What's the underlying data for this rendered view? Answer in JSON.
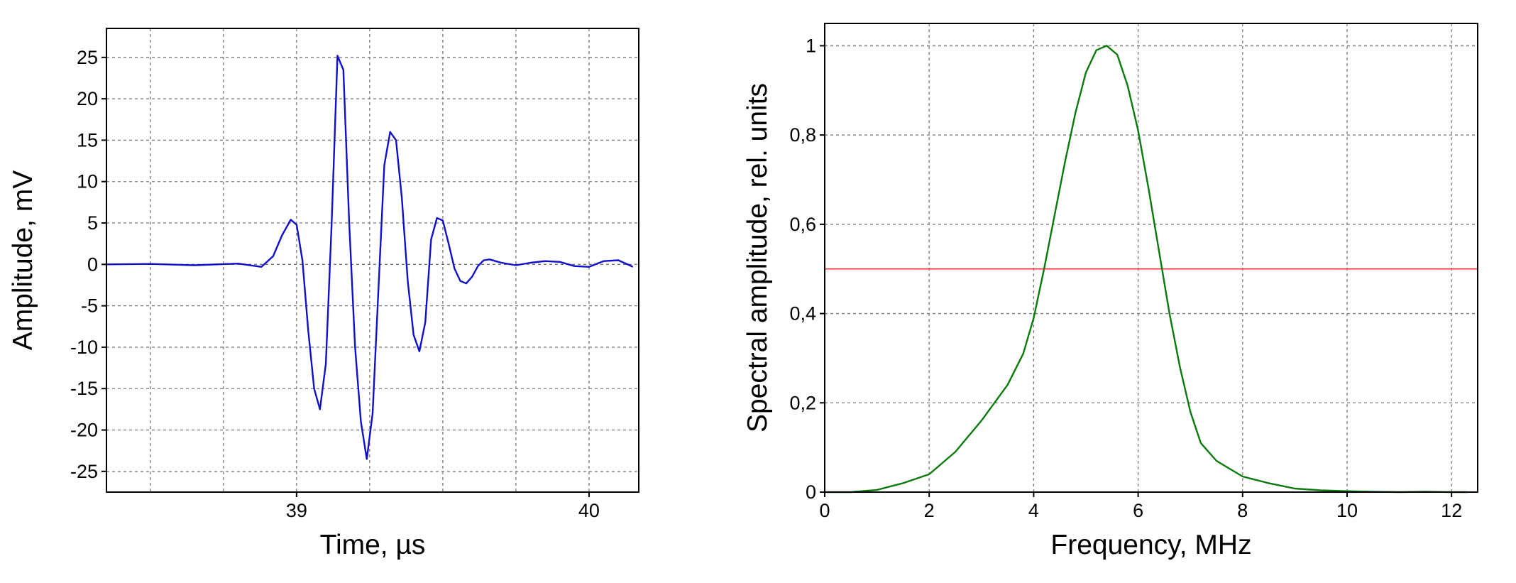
{
  "chart_data": [
    {
      "type": "line",
      "xlabel": "Time, µs",
      "ylabel": "Amplitude, mV",
      "xlim": [
        38.35,
        40.17
      ],
      "ylim": [
        -27.5,
        28.5
      ],
      "xticks": [
        {
          "value": 39,
          "label": "39"
        },
        {
          "value": 40,
          "label": "40"
        }
      ],
      "xgrid_minor": [
        38.5,
        38.75,
        39.25,
        39.5,
        39.75
      ],
      "yticks": [
        {
          "value": 25,
          "label": "25"
        },
        {
          "value": 20,
          "label": "20"
        },
        {
          "value": 15,
          "label": "15"
        },
        {
          "value": 10,
          "label": "10"
        },
        {
          "value": 5,
          "label": "5"
        },
        {
          "value": 0,
          "label": "0"
        },
        {
          "value": -5,
          "label": "-5"
        },
        {
          "value": -10,
          "label": "-10"
        },
        {
          "value": -15,
          "label": "-15"
        },
        {
          "value": -20,
          "label": "-20"
        },
        {
          "value": -25,
          "label": "-25"
        }
      ],
      "grid": true,
      "series": [
        {
          "color": "#1010cc",
          "x": [
            38.35,
            38.5,
            38.65,
            38.8,
            38.88,
            38.92,
            38.95,
            38.98,
            39.0,
            39.02,
            39.04,
            39.06,
            39.08,
            39.1,
            39.12,
            39.14,
            39.16,
            39.18,
            39.2,
            39.22,
            39.24,
            39.26,
            39.28,
            39.3,
            39.32,
            39.34,
            39.36,
            39.38,
            39.4,
            39.42,
            39.44,
            39.46,
            39.48,
            39.5,
            39.52,
            39.54,
            39.56,
            39.58,
            39.6,
            39.62,
            39.64,
            39.66,
            39.68,
            39.7,
            39.75,
            39.8,
            39.85,
            39.9,
            39.95,
            40.0,
            40.05,
            40.1,
            40.15
          ],
          "y": [
            0.0,
            0.05,
            -0.1,
            0.1,
            -0.3,
            1.0,
            3.5,
            5.4,
            4.8,
            0.5,
            -8.0,
            -15.0,
            -17.5,
            -12.0,
            5.0,
            25.2,
            23.5,
            5.0,
            -10.0,
            -19.0,
            -23.5,
            -18.0,
            -3.0,
            12.0,
            16.0,
            15.0,
            8.0,
            -2.0,
            -8.5,
            -10.5,
            -7.0,
            3.0,
            5.6,
            5.3,
            2.5,
            -0.5,
            -2.0,
            -2.3,
            -1.5,
            -0.2,
            0.5,
            0.6,
            0.4,
            0.2,
            -0.1,
            0.2,
            0.4,
            0.3,
            -0.2,
            -0.3,
            0.4,
            0.5,
            -0.3
          ]
        }
      ]
    },
    {
      "type": "line",
      "xlabel": "Frequency, MHz",
      "ylabel": "Spectral amplitude, rel. units",
      "xlim": [
        0,
        12.5
      ],
      "ylim": [
        0,
        1.05
      ],
      "xticks": [
        {
          "value": 0,
          "label": "0"
        },
        {
          "value": 2,
          "label": "2"
        },
        {
          "value": 4,
          "label": "4"
        },
        {
          "value": 6,
          "label": "6"
        },
        {
          "value": 8,
          "label": "8"
        },
        {
          "value": 10,
          "label": "10"
        },
        {
          "value": 12,
          "label": "12"
        }
      ],
      "yticks": [
        {
          "value": 0,
          "label": "0"
        },
        {
          "value": 0.2,
          "label": "0,2"
        },
        {
          "value": 0.4,
          "label": "0,4"
        },
        {
          "value": 0.6,
          "label": "0,6"
        },
        {
          "value": 0.8,
          "label": "0,8"
        },
        {
          "value": 1,
          "label": "1"
        }
      ],
      "grid": true,
      "series": [
        {
          "color": "#0a7a0a",
          "x": [
            0,
            0.5,
            1.0,
            1.5,
            2.0,
            2.5,
            3.0,
            3.5,
            3.8,
            4.0,
            4.2,
            4.4,
            4.6,
            4.8,
            5.0,
            5.2,
            5.4,
            5.6,
            5.8,
            6.0,
            6.2,
            6.4,
            6.6,
            6.8,
            7.0,
            7.2,
            7.5,
            8.0,
            8.5,
            9.0,
            9.5,
            10.0,
            10.5,
            11.0,
            11.5,
            12.0,
            12.3
          ],
          "y": [
            0.0,
            0.0,
            0.005,
            0.02,
            0.04,
            0.09,
            0.16,
            0.24,
            0.31,
            0.39,
            0.5,
            0.62,
            0.74,
            0.85,
            0.94,
            0.99,
            1.0,
            0.98,
            0.91,
            0.81,
            0.68,
            0.54,
            0.4,
            0.28,
            0.18,
            0.11,
            0.07,
            0.035,
            0.02,
            0.008,
            0.004,
            0.002,
            0.001,
            0.0,
            0.001,
            0.0,
            0.0
          ]
        }
      ],
      "reference_lines": [
        {
          "y": 0.5,
          "color": "#ff3333"
        }
      ]
    }
  ]
}
